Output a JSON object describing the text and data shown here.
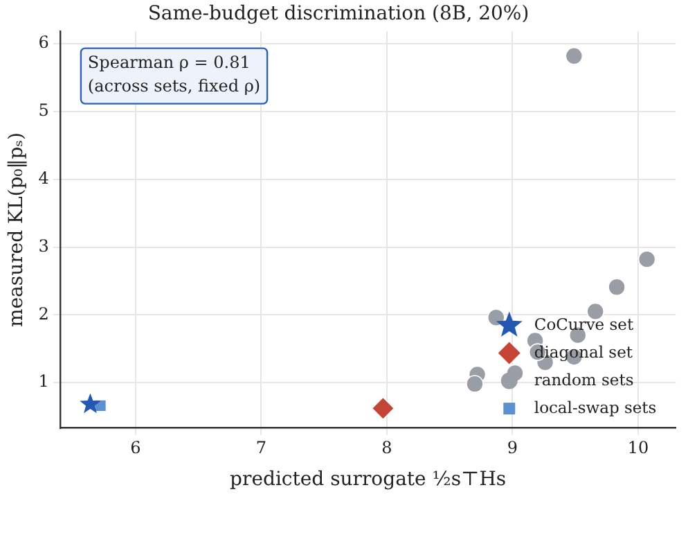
{
  "chart_data": {
    "type": "scatter",
    "title": "Same-budget discrimination (8B, 20%)",
    "xlabel": "predicted surrogate ½s⊤Hs",
    "ylabel": "measured KL(p₀‖pₛ)",
    "xlim": [
      5.4,
      10.3
    ],
    "xticks": [
      6,
      7,
      8,
      9,
      10
    ],
    "ylim": [
      0.33,
      6.18
    ],
    "yticks": [
      1,
      2,
      3,
      4,
      5,
      6
    ],
    "grid": true,
    "legend": "bottom right",
    "annotations": [
      "Spearman ρ = 0.81\n(across sets, fixed ρ)"
    ],
    "series": [
      {
        "name": "CoCurve set",
        "color": "#2358b0",
        "marker": "star",
        "x": [
          5.64
        ],
        "values": [
          0.68
        ]
      },
      {
        "name": "diagonal set",
        "color": "#c44536",
        "marker": "diamond",
        "x": [
          7.97
        ],
        "values": [
          0.62
        ]
      },
      {
        "name": "random sets",
        "color": "#999ea6",
        "marker": "circle",
        "x": [
          9.49,
          10.07,
          9.83,
          9.66,
          8.87,
          9.18,
          9.26,
          9.49,
          9.52,
          9.02,
          8.72,
          8.7,
          9.2
        ],
        "values": [
          5.82,
          2.82,
          2.41,
          2.05,
          1.96,
          1.62,
          1.3,
          1.38,
          1.7,
          1.14,
          1.12,
          0.98,
          1.45
        ]
      },
      {
        "name": "local-swap sets",
        "color": "#5b8fd0",
        "marker": "square",
        "x": [
          5.72
        ],
        "values": [
          0.66
        ]
      }
    ]
  }
}
